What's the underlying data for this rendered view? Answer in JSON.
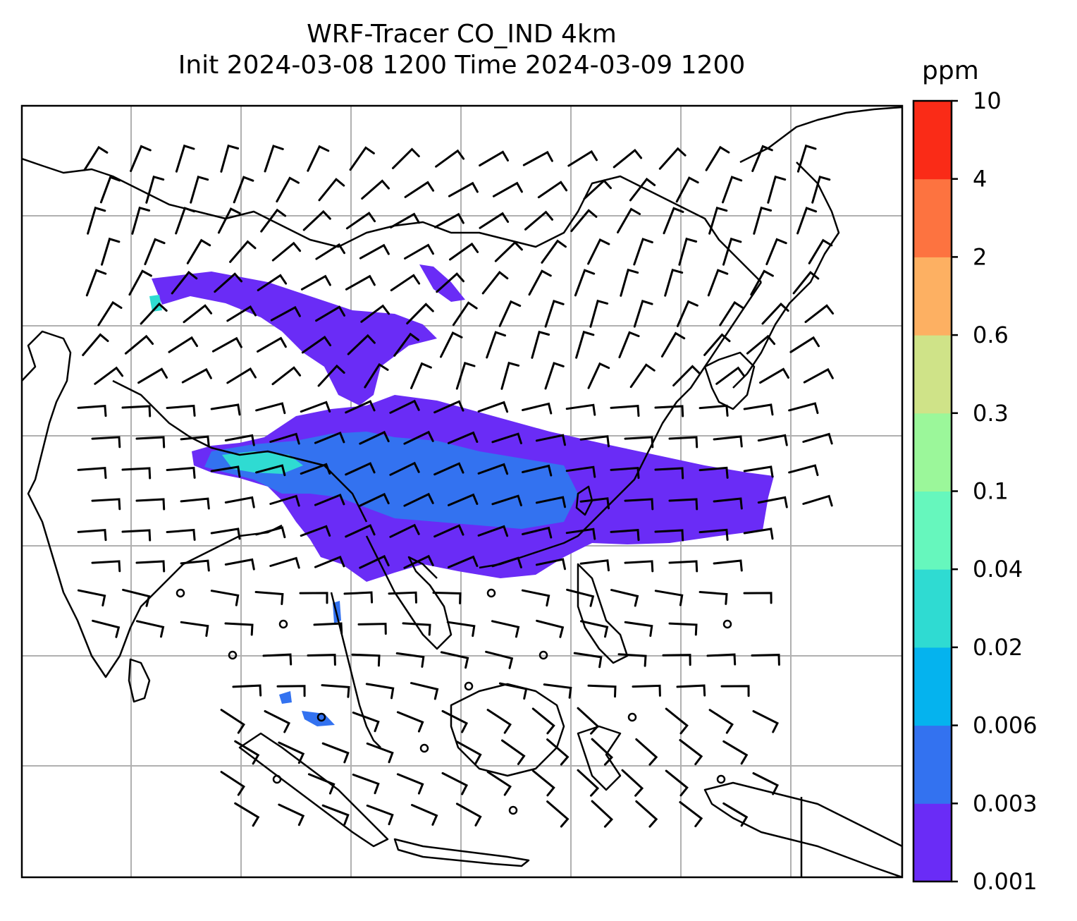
{
  "title": {
    "line1": "WRF-Tracer CO_IND 4km",
    "line2": "Init 2024-03-08 1200 Time 2024-03-09 1200"
  },
  "colorbar": {
    "unit": "ppm",
    "levels": [
      "0.001",
      "0.003",
      "0.006",
      "0.02",
      "0.04",
      "0.1",
      "0.3",
      "0.6",
      "2",
      "4",
      "10"
    ],
    "colors": [
      "#6a2cf6",
      "#3372f0",
      "#05b3ee",
      "#2fdbd2",
      "#66f7bd",
      "#9bf79a",
      "#cfe388",
      "#fdb062",
      "#fd7340",
      "#fa2b17"
    ]
  },
  "map": {
    "plume_color_main": "#6a2cf6",
    "plume_color_core": "#3372f0",
    "plume_color_high": "#2fdbd2",
    "gridline_color": "#b0b0b0",
    "coastline_color": "#000000"
  }
}
